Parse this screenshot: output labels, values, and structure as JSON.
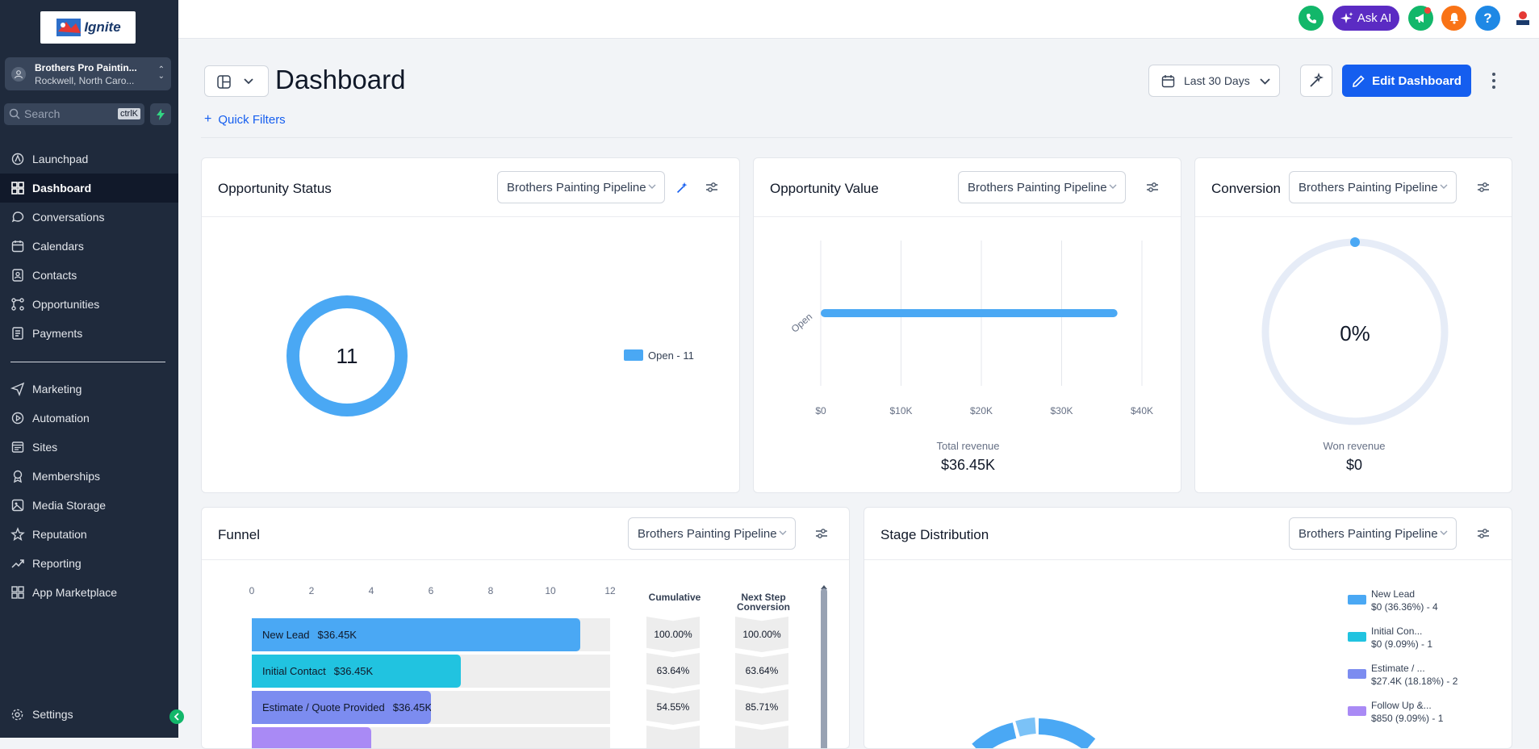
{
  "sidebar": {
    "logo_text": "Ignite",
    "location": {
      "name": "Brothers Pro Paintin...",
      "sub": "Rockwell, North Caro..."
    },
    "search": {
      "placeholder": "Search",
      "shortcut": "ctrlK"
    },
    "items_top": [
      {
        "label": "Launchpad",
        "icon": "launchpad-icon"
      },
      {
        "label": "Dashboard",
        "icon": "dashboard-icon",
        "active": true
      },
      {
        "label": "Conversations",
        "icon": "chat-icon"
      },
      {
        "label": "Calendars",
        "icon": "calendar-icon"
      },
      {
        "label": "Contacts",
        "icon": "contacts-icon"
      },
      {
        "label": "Opportunities",
        "icon": "opportunities-icon"
      },
      {
        "label": "Payments",
        "icon": "payments-icon"
      }
    ],
    "items_bottom": [
      {
        "label": "Marketing",
        "icon": "send-icon"
      },
      {
        "label": "Automation",
        "icon": "automation-icon"
      },
      {
        "label": "Sites",
        "icon": "sites-icon"
      },
      {
        "label": "Memberships",
        "icon": "membership-icon"
      },
      {
        "label": "Media Storage",
        "icon": "media-icon"
      },
      {
        "label": "Reputation",
        "icon": "star-icon"
      },
      {
        "label": "Reporting",
        "icon": "trend-icon"
      },
      {
        "label": "App Marketplace",
        "icon": "apps-icon"
      }
    ],
    "settings_label": "Settings"
  },
  "topbar": {
    "ask_ai": "Ask AI",
    "colors": {
      "phone": "#12b76a",
      "ask_ai": "#5b2bc3",
      "announce": "#12b76a",
      "bell": "#f97316",
      "help": "#1e88e5"
    }
  },
  "header": {
    "title": "Dashboard",
    "quick_filters": "Quick Filters",
    "date_range": "Last 30 Days",
    "edit_button": "Edit Dashboard"
  },
  "opportunity_status": {
    "title": "Opportunity Status",
    "pipeline": "Brothers Painting Pipeline",
    "total": "11",
    "legend": "Open - 11",
    "color": "#4aa8f4"
  },
  "opportunity_value": {
    "title": "Opportunity Value",
    "pipeline": "Brothers Painting Pipeline",
    "footer_label": "Total revenue",
    "footer_value": "$36.45K",
    "chart_data": {
      "type": "bar",
      "orientation": "horizontal",
      "categories": [
        "Open"
      ],
      "values": [
        36450
      ],
      "xlim": [
        0,
        40000
      ],
      "xticks": [
        "$0",
        "$10K",
        "$20K",
        "$30K",
        "$40K"
      ]
    }
  },
  "conversion": {
    "title": "Conversion",
    "pipeline": "Brothers Painting Pipeline",
    "percent": "0%",
    "footer_label": "Won revenue",
    "footer_value": "$0"
  },
  "funnel": {
    "title": "Funnel",
    "pipeline": "Brothers Painting Pipeline",
    "axis_ticks": [
      "0",
      "2",
      "4",
      "6",
      "8",
      "10",
      "12"
    ],
    "cumulative_header": "Cumulative",
    "next_header_1": "Next Step",
    "next_header_2": "Conversion",
    "chart_data": {
      "type": "bar",
      "orientation": "horizontal",
      "xlim": [
        0,
        12
      ],
      "rows": [
        {
          "label": "New Lead",
          "value_label": "$36.45K",
          "count": 11,
          "color": "#4aa8f4",
          "cumulative": "100.00%",
          "next": "100.00%"
        },
        {
          "label": "Initial Contact",
          "value_label": "$36.45K",
          "count": 7,
          "color": "#21c3e0",
          "cumulative": "63.64%",
          "next": "63.64%"
        },
        {
          "label": "Estimate / Quote Provided",
          "value_label": "$36.45K",
          "count": 6,
          "color": "#7c8cf0",
          "cumulative": "54.55%",
          "next": "85.71%"
        },
        {
          "label": "",
          "value_label": "",
          "count": 4,
          "color": "#a98af5",
          "cumulative": "",
          "next": ""
        }
      ]
    }
  },
  "stage_distribution": {
    "title": "Stage Distribution",
    "pipeline": "Brothers Painting Pipeline",
    "legend": [
      {
        "name": "New Lead",
        "detail": "$0 (36.36%) - 4",
        "color": "#4aa8f4"
      },
      {
        "name": "Initial Con...",
        "detail": "$0 (9.09%) - 1",
        "color": "#21c3e0"
      },
      {
        "name": "Estimate / ...",
        "detail": "$27.4K (18.18%) - 2",
        "color": "#7c8cf0"
      },
      {
        "name": "Follow Up &...",
        "detail": "$850 (9.09%) - 1",
        "color": "#a98af5"
      }
    ]
  }
}
